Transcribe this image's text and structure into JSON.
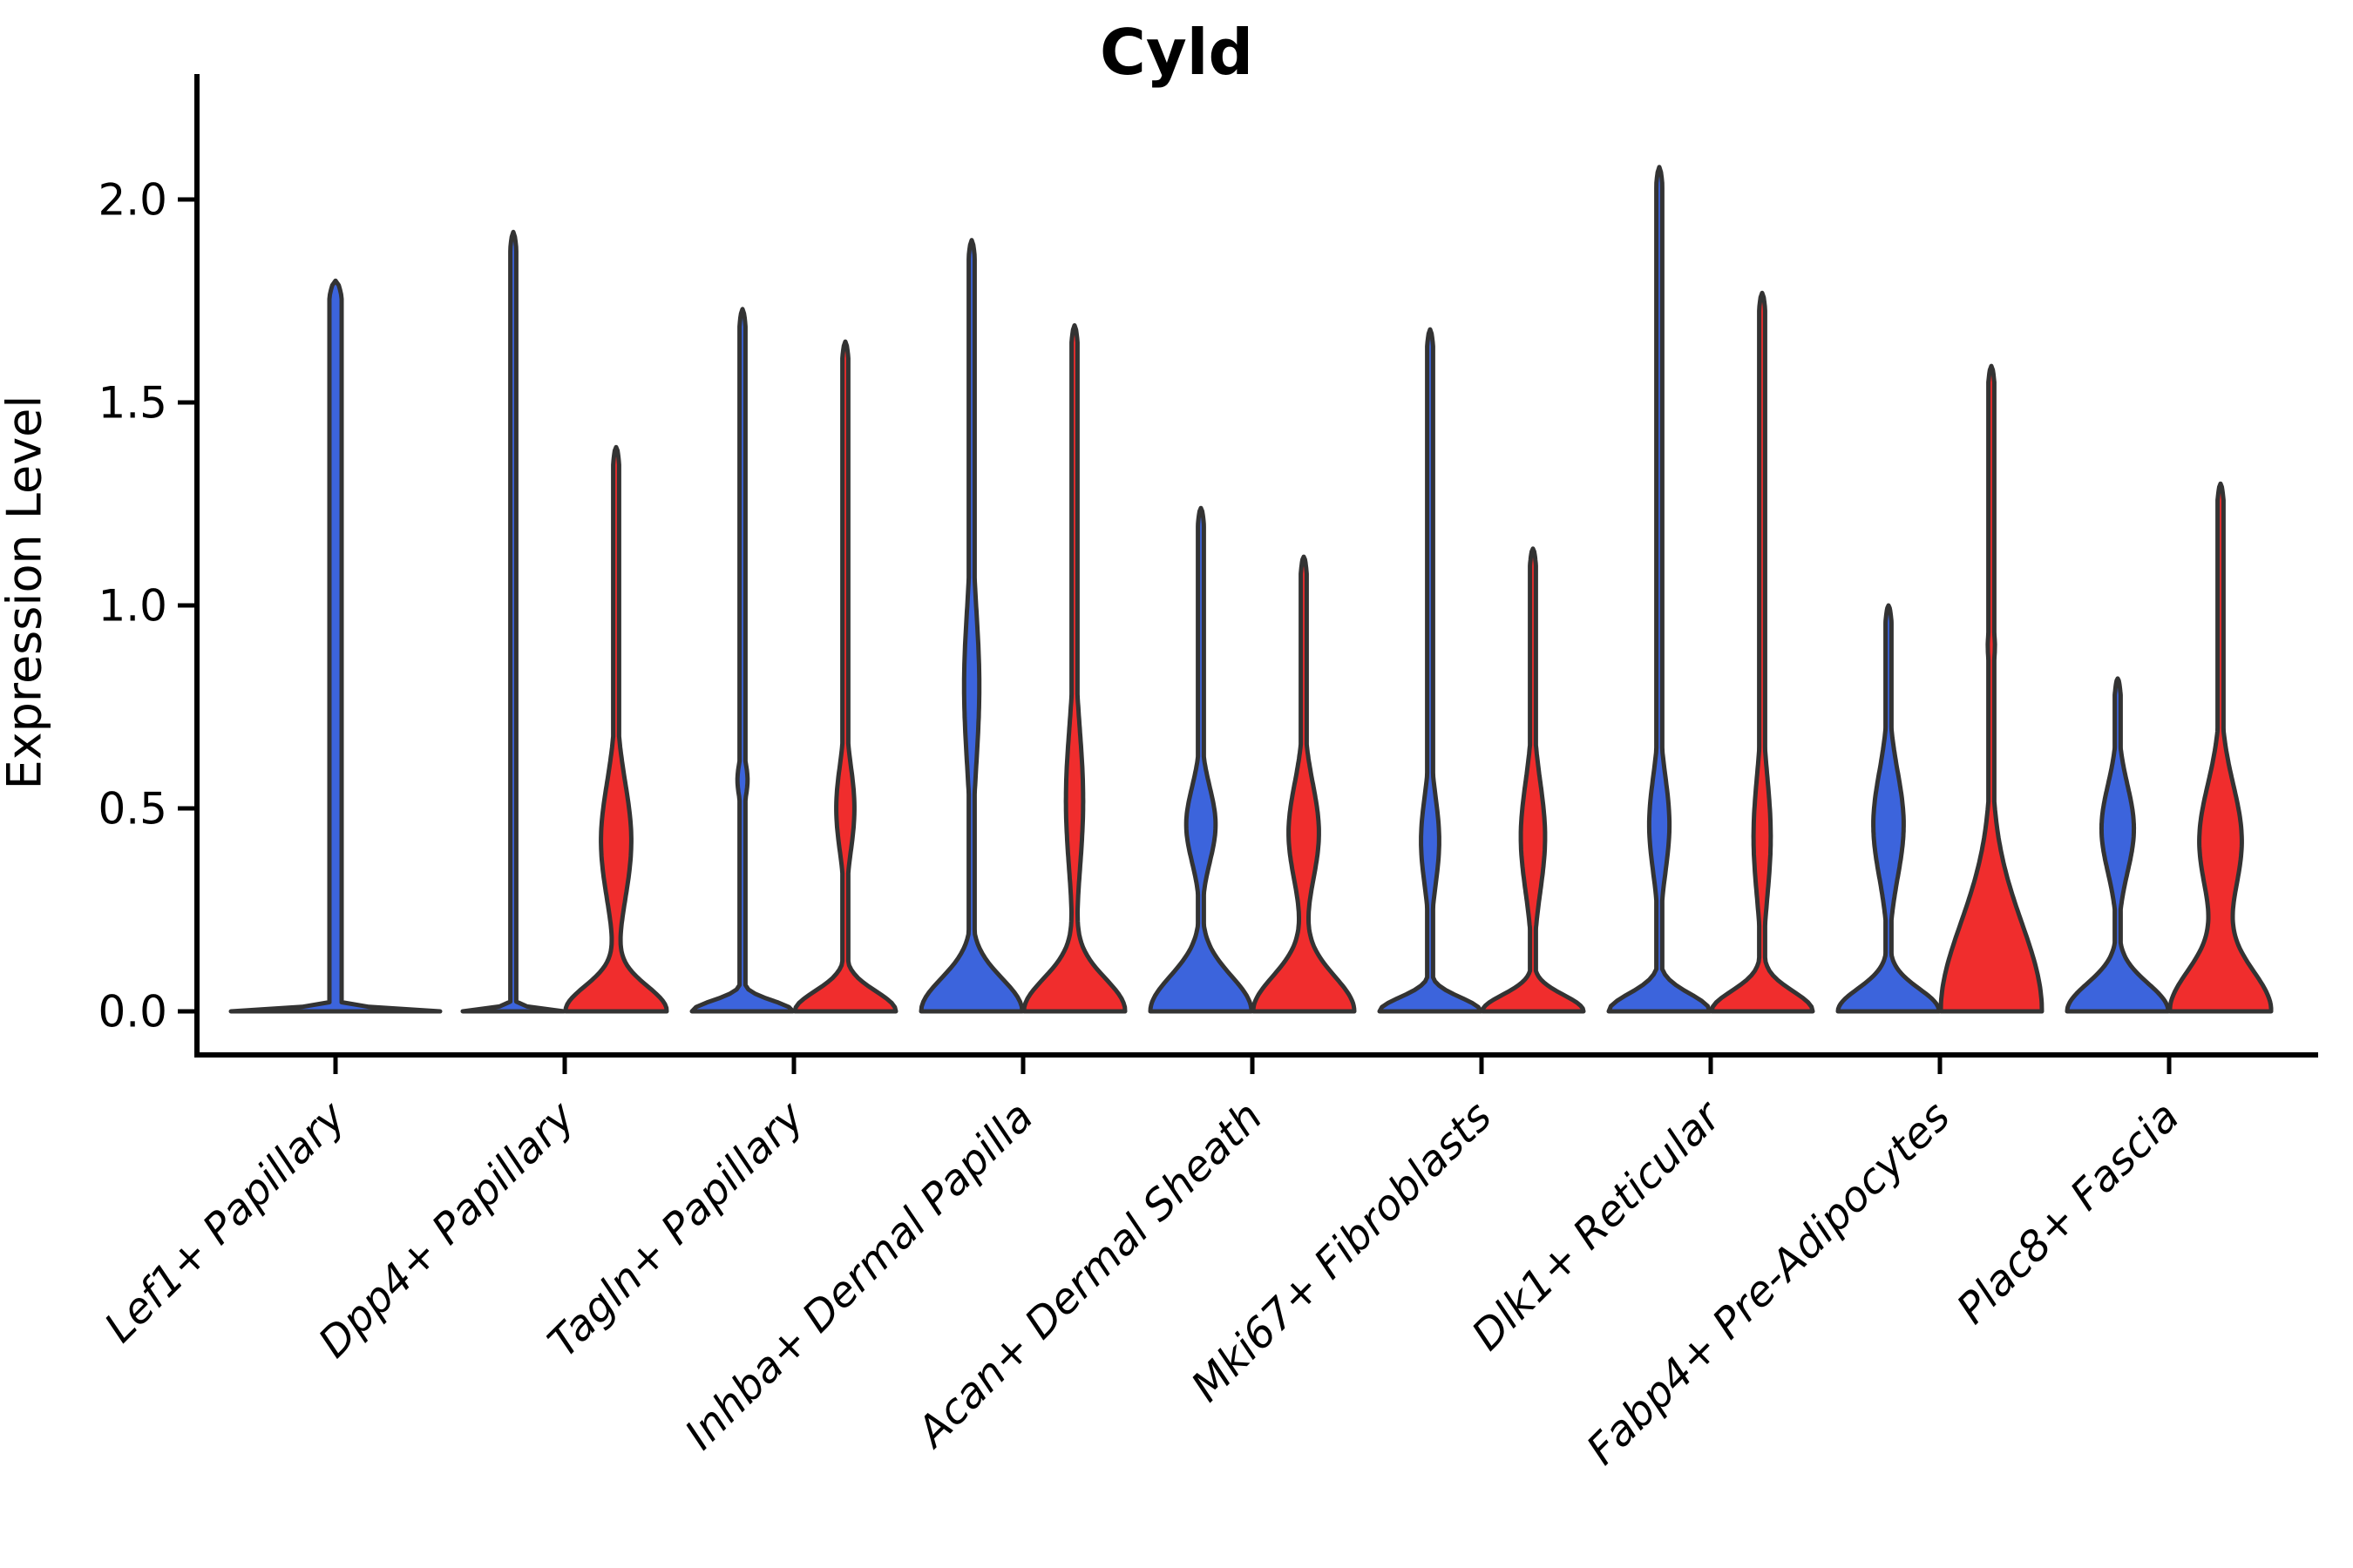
{
  "chart_data": {
    "type": "violin",
    "title": "Cyld",
    "ylabel": "Expression Level",
    "xlabel": "",
    "ylim": [
      0,
      2.25
    ],
    "yticks": [
      0.0,
      0.5,
      1.0,
      1.5,
      2.0
    ],
    "ytick_labels": [
      "0.0",
      "0.5",
      "1.0",
      "1.5",
      "2.0"
    ],
    "grid": "off",
    "legend": "none",
    "categories": [
      "Lef1+ Papillary",
      "Dpp4+ Papillary",
      "Tagln+ Papillary",
      "Inhba+ Dermal Papilla",
      "Acan+ Dermal Sheath",
      "Mki67+ Fibroblasts",
      "Dlk1+ Reticular",
      "Fabp4+ Pre-Adipocytes",
      "Plac8+ Fascia"
    ],
    "groups": [
      "blue",
      "red"
    ],
    "colors": {
      "blue": "#3C64DC",
      "red": "#F02D2D",
      "outline": "#333333",
      "text": "#000000"
    },
    "series": [
      {
        "category": "Lef1+ Papillary",
        "violins": [
          {
            "group": "blue",
            "offset": 0,
            "halfwidth": 120,
            "max": 1.8,
            "mound_h": 0.012,
            "bulge": null
          }
        ]
      },
      {
        "category": "Dpp4+ Papillary",
        "violins": [
          {
            "group": "blue",
            "offset": -59,
            "halfwidth": 58,
            "max": 1.92,
            "mound_h": 0.012,
            "bulge": null
          },
          {
            "group": "red",
            "offset": 59,
            "halfwidth": 58,
            "max": 1.39,
            "mound_h": 0.1,
            "bulge": {
              "lo": 0.23,
              "hi": 0.8,
              "peak": 0.42,
              "w": 0.3
            }
          }
        ]
      },
      {
        "category": "Tagln+ Papillary",
        "violins": [
          {
            "group": "blue",
            "offset": -59,
            "halfwidth": 58,
            "max": 1.73,
            "mound_h": 0.042,
            "bulge": {
              "lo": 0.48,
              "hi": 0.66,
              "peak": 0.57,
              "w": 0.1
            }
          },
          {
            "group": "red",
            "offset": 59,
            "halfwidth": 58,
            "max": 1.65,
            "mound_h": 0.08,
            "bulge": {
              "lo": 0.29,
              "hi": 0.71,
              "peak": 0.5,
              "w": 0.18
            }
          }
        ]
      },
      {
        "category": "Inhba+ Dermal Papilla",
        "violins": [
          {
            "group": "blue",
            "offset": -59,
            "halfwidth": 58,
            "max": 1.9,
            "mound_h": 0.13,
            "bulge": {
              "lo": 0.42,
              "hi": 1.19,
              "peak": 0.8,
              "w": 0.15
            }
          },
          {
            "group": "red",
            "offset": 59,
            "halfwidth": 58,
            "max": 1.69,
            "mound_h": 0.13,
            "bulge": {
              "lo": 0.23,
              "hi": 0.94,
              "peak": 0.52,
              "w": 0.17
            }
          }
        ]
      },
      {
        "category": "Acan+ Dermal Sheath",
        "violins": [
          {
            "group": "blue",
            "offset": -59,
            "halfwidth": 58,
            "max": 1.24,
            "mound_h": 0.14,
            "bulge": {
              "lo": 0.27,
              "hi": 0.64,
              "peak": 0.46,
              "w": 0.29
            }
          },
          {
            "group": "red",
            "offset": 59,
            "halfwidth": 58,
            "max": 1.12,
            "mound_h": 0.14,
            "bulge": {
              "lo": 0.22,
              "hi": 0.7,
              "peak": 0.44,
              "w": 0.3
            }
          }
        ]
      },
      {
        "category": "Mki67+ Fibroblasts",
        "violins": [
          {
            "group": "blue",
            "offset": -59,
            "halfwidth": 58,
            "max": 1.68,
            "mound_h": 0.055,
            "bulge": {
              "lo": 0.19,
              "hi": 0.62,
              "peak": 0.42,
              "w": 0.18
            }
          },
          {
            "group": "red",
            "offset": 59,
            "halfwidth": 58,
            "max": 1.14,
            "mound_h": 0.065,
            "bulge": {
              "lo": 0.16,
              "hi": 0.7,
              "peak": 0.43,
              "w": 0.24
            }
          }
        ]
      },
      {
        "category": "Dlk1+ Reticular",
        "violins": [
          {
            "group": "blue",
            "offset": -59,
            "halfwidth": 58,
            "max": 2.08,
            "mound_h": 0.07,
            "bulge": {
              "lo": 0.22,
              "hi": 0.69,
              "peak": 0.46,
              "w": 0.2
            }
          },
          {
            "group": "red",
            "offset": 59,
            "halfwidth": 58,
            "max": 1.77,
            "mound_h": 0.08,
            "bulge": {
              "lo": 0.14,
              "hi": 0.73,
              "peak": 0.43,
              "w": 0.17
            }
          }
        ]
      },
      {
        "category": "Fabp4+ Pre-Adipocytes",
        "violins": [
          {
            "group": "blue",
            "offset": -59,
            "halfwidth": 58,
            "max": 1.0,
            "mound_h": 0.09,
            "bulge": {
              "lo": 0.19,
              "hi": 0.71,
              "peak": 0.46,
              "w": 0.3
            }
          },
          {
            "group": "red",
            "offset": 59,
            "halfwidth": 58,
            "max": 1.59,
            "mound_h": 0.35,
            "bulge": {
              "lo": 0.8,
              "hi": 1.0,
              "peak": 0.9,
              "w": 0.07
            }
          }
        ]
      },
      {
        "category": "Plac8+ Fascia",
        "violins": [
          {
            "group": "blue",
            "offset": -59,
            "halfwidth": 58,
            "max": 0.82,
            "mound_h": 0.11,
            "bulge": {
              "lo": 0.29,
              "hi": 0.72,
              "peak": 0.45,
              "w": 0.32
            }
          },
          {
            "group": "red",
            "offset": 59,
            "halfwidth": 58,
            "max": 1.3,
            "mound_h": 0.165,
            "bulge": {
              "lo": 0.25,
              "hi": 0.8,
              "peak": 0.42,
              "w": 0.42
            }
          }
        ]
      }
    ]
  }
}
